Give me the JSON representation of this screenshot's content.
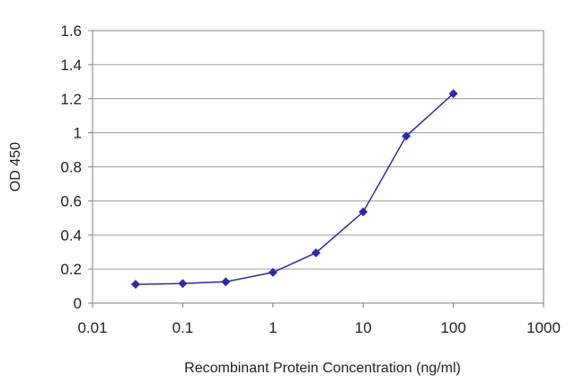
{
  "chart_data": {
    "type": "line",
    "title": "",
    "xlabel": "Recombinant Protein Concentration (ng/ml)",
    "ylabel": "OD 450",
    "x_scale": "log",
    "xlim": [
      0.01,
      1000
    ],
    "ylim": [
      0,
      1.6
    ],
    "x_ticks": [
      "0.01",
      "0.1",
      "1",
      "10",
      "100",
      "1000"
    ],
    "y_ticks": [
      "0",
      "0.2",
      "0.4",
      "0.6",
      "0.8",
      "1",
      "1.2",
      "1.4",
      "1.6"
    ],
    "grid": true,
    "legend": "none",
    "series": [
      {
        "x": [
          0.03,
          0.1,
          0.3,
          1,
          3,
          10,
          30,
          100
        ],
        "y": [
          0.11,
          0.115,
          0.125,
          0.18,
          0.295,
          0.535,
          0.98,
          1.23
        ],
        "color": "#2b2ba6"
      }
    ]
  }
}
